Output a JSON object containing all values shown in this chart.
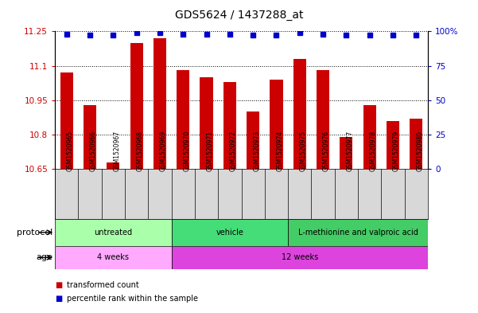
{
  "title": "GDS5624 / 1437288_at",
  "samples": [
    "GSM1520965",
    "GSM1520966",
    "GSM1520967",
    "GSM1520968",
    "GSM1520969",
    "GSM1520970",
    "GSM1520971",
    "GSM1520972",
    "GSM1520973",
    "GSM1520974",
    "GSM1520975",
    "GSM1520976",
    "GSM1520977",
    "GSM1520978",
    "GSM1520979",
    "GSM1520980"
  ],
  "bar_values": [
    11.07,
    10.93,
    10.68,
    11.2,
    11.22,
    11.08,
    11.05,
    11.03,
    10.9,
    11.04,
    11.13,
    11.08,
    10.79,
    10.93,
    10.86,
    10.87
  ],
  "percentile_values": [
    98,
    97,
    97,
    99,
    99,
    98,
    98,
    98,
    97,
    97,
    99,
    98,
    97,
    97,
    97,
    97
  ],
  "ylim_left": [
    10.65,
    11.25
  ],
  "yticks_left": [
    10.65,
    10.8,
    10.95,
    11.1,
    11.25
  ],
  "ytick_labels_left": [
    "10.65",
    "10.8",
    "10.95",
    "11.1",
    "11.25"
  ],
  "ylim_right": [
    0,
    100
  ],
  "yticks_right": [
    0,
    25,
    50,
    75,
    100
  ],
  "ytick_labels_right": [
    "0",
    "25",
    "50",
    "75",
    "100%"
  ],
  "bar_color": "#cc0000",
  "dot_color": "#0000cc",
  "bar_width": 0.55,
  "protocol_groups": [
    {
      "label": "untreated",
      "start": 0,
      "end": 5,
      "color": "#aaffaa"
    },
    {
      "label": "vehicle",
      "start": 5,
      "end": 10,
      "color": "#44dd77"
    },
    {
      "label": "L-methionine and valproic acid",
      "start": 10,
      "end": 16,
      "color": "#44cc66"
    }
  ],
  "age_groups": [
    {
      "label": "4 weeks",
      "start": 0,
      "end": 5,
      "color": "#ffaaff"
    },
    {
      "label": "12 weeks",
      "start": 5,
      "end": 16,
      "color": "#dd44dd"
    }
  ],
  "protocol_label": "protocol",
  "age_label": "age",
  "legend_bar_label": "transformed count",
  "legend_dot_label": "percentile rank within the sample",
  "title_fontsize": 10,
  "tick_fontsize": 7.5,
  "background_color": "#ffffff"
}
